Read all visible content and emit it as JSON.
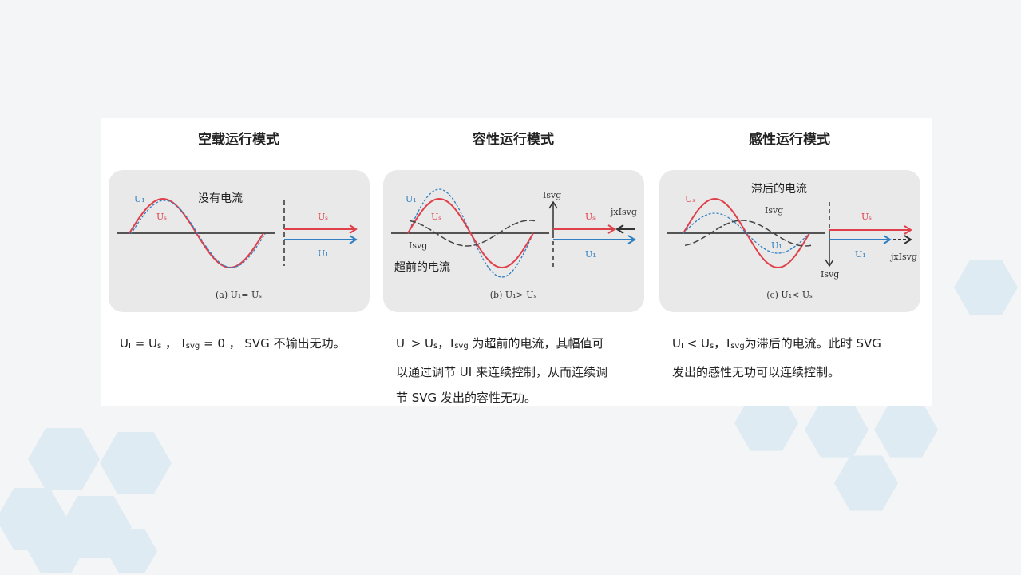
{
  "colors": {
    "us": "#e0404a",
    "ui": "#2f7fc1",
    "isvg": "#333333",
    "panel": "#e9e9e9",
    "hex": "#d6e8f2"
  },
  "modes": [
    {
      "title": "空载运行模式",
      "caption": "(a)  U₁= Uₛ",
      "note": "没有电流",
      "labels": {
        "ui": "U₁",
        "us": "Uₛ",
        "arrow_us": "Uₛ",
        "arrow_ui": "U₁"
      },
      "desc": {
        "lhs": "U",
        "lhs_sub": "I",
        "op": " = U",
        "rhs_sub": "s",
        "rest1": " ，  ",
        "i": "I",
        "i_sub": "svg",
        "rest2": " = 0  ，  SVG 不输出无功。",
        "line2": "",
        "line3": ""
      }
    },
    {
      "title": "容性运行模式",
      "caption": "(b)  U₁> Uₛ",
      "note": "超前的电流",
      "labels": {
        "ui": "U₁",
        "us": "Uₛ",
        "isvg": "Isvg",
        "axis": "Isvg",
        "jx": "jxIsvg",
        "arrow_us": "Uₛ",
        "arrow_ui": "U₁"
      },
      "desc": {
        "lhs": "U",
        "lhs_sub": "I",
        "op": " > U",
        "rhs_sub": "s",
        "rest1": "，",
        "i": "I",
        "i_sub": "svg",
        "rest2": " 为超前的电流，其幅值可",
        "line2": "以通过调节 UI 来连续控制，从而连续调",
        "line3": "节 SVG 发出的容性无功。"
      }
    },
    {
      "title": "感性运行模式",
      "caption": "(c)  U₁< Uₛ",
      "note": "滞后的电流",
      "labels": {
        "ui": "U₁",
        "us": "Uₛ",
        "isvg": "Isvg",
        "axis": "Isvg",
        "jx": "jxIsvg",
        "arrow_us": "Uₛ",
        "arrow_ui": "U₁"
      },
      "desc": {
        "lhs": "U",
        "lhs_sub": "I",
        "op": " <   U",
        "rhs_sub": "s",
        "rest1": "，",
        "i": "I",
        "i_sub": "svg",
        "rest2": "为滞后的电流。此时 SVG",
        "line2": "发出的感性无功可以连续控制。",
        "line3": ""
      }
    }
  ]
}
